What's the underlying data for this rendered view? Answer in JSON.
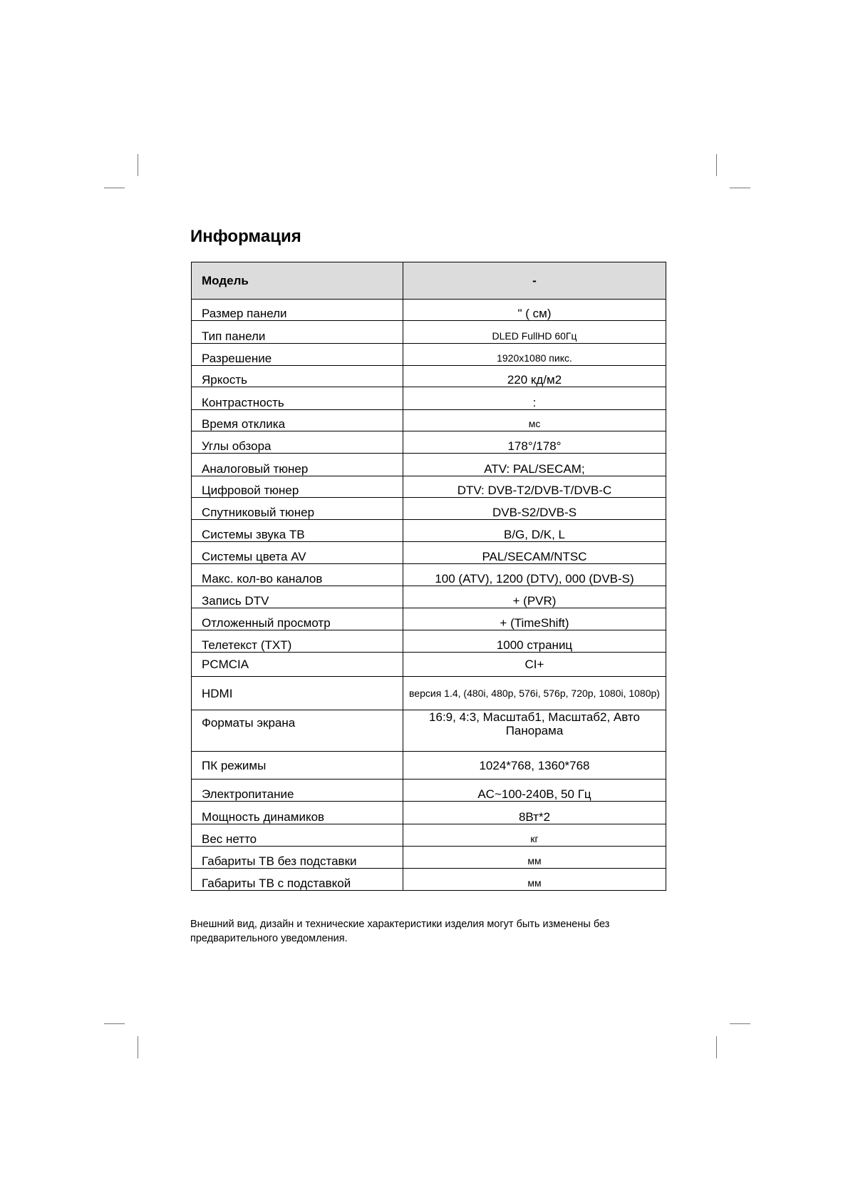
{
  "title": "Информация",
  "table": {
    "header": {
      "label": "Модель",
      "value": "-"
    },
    "rows": [
      {
        "label": "Размер панели",
        "value": "\" (      см)"
      },
      {
        "label": "Тип панели",
        "value": "DLED FullHD 60Гц"
      },
      {
        "label": "Разрешение",
        "value": "1920x1080 пикс."
      },
      {
        "label": "Яркость",
        "value": "220 кд/м2"
      },
      {
        "label": "Контрастность",
        "value": ":"
      },
      {
        "label": "Время отклика",
        "value": "мс"
      },
      {
        "label": "Углы обзора",
        "value": "178°/178°"
      },
      {
        "label": "Аналоговый тюнер",
        "value": "ATV: PAL/SECAM;"
      },
      {
        "label": "Цифровой тюнер",
        "value": "DTV: DVB-T2/DVB-T/DVB-C"
      },
      {
        "label": "Спутниковый тюнер",
        "value": "DVB-S2/DVB-S"
      },
      {
        "label": "Системы звука ТВ",
        "value": "B/G, D/K, L"
      },
      {
        "label": "Системы цвета AV",
        "value": "PAL/SECAM/NTSC"
      },
      {
        "label": "Макс. кол-во каналов",
        "value": "100 (ATV), 1200 (DTV),   000 (DVB-S)"
      },
      {
        "label": "Запись DTV",
        "value": "+ (PVR)"
      },
      {
        "label": "Отложенный просмотр",
        "value": "+ (TimeShift)"
      },
      {
        "label": "Телетекст (TXT)",
        "value": "1000 страниц"
      },
      {
        "label": "PCMCIA",
        "value": "CI+"
      },
      {
        "label": "HDMI",
        "value": "версия 1.4, (480i, 480p, 576i, 576p, 720p, 1080i, 1080p)"
      },
      {
        "label": "Форматы экрана",
        "value": "16:9, 4:3, Масштаб1, Масштаб2, Авто Панорама"
      },
      {
        "label": "ПК режимы",
        "value": "1024*768, 1360*768"
      },
      {
        "label": "Электропитание",
        "value": "AC~100-240В, 50 Гц"
      },
      {
        "label": "Мощность динамиков",
        "value": "8Вт*2"
      },
      {
        "label": "Вес нетто",
        "value": "кг"
      },
      {
        "label": "Габариты ТВ без подставки",
        "value": "мм"
      },
      {
        "label": "Габариты ТВ с подставкой",
        "value": "мм"
      }
    ]
  },
  "note": "Внешний вид, дизайн и технические характеристики изделия могут быть изменены без предварительного уведомления."
}
